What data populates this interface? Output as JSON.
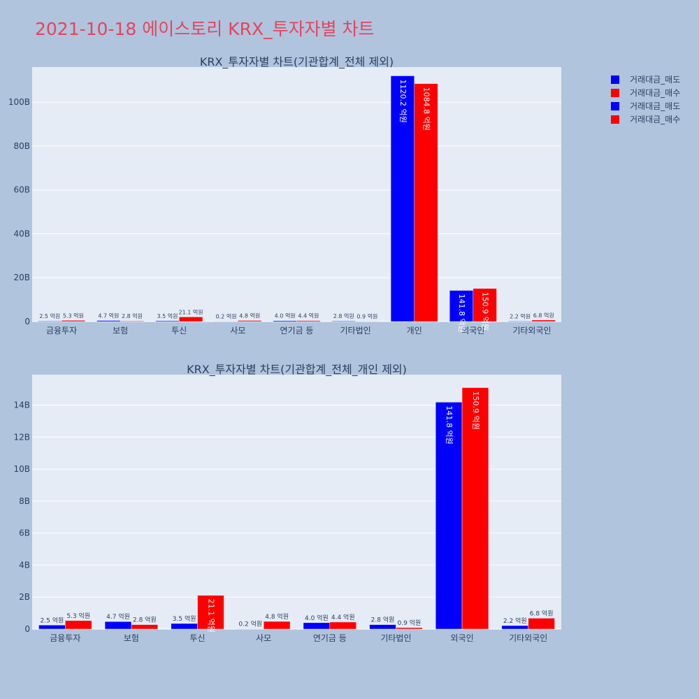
{
  "title": "2021-10-18 에이스토리 KRX_투자자별 차트",
  "legend": [
    {
      "label": "거래대금_매도",
      "color": "#0000ff"
    },
    {
      "label": "거래대금_매수",
      "color": "#ff0000"
    },
    {
      "label": "거래대금_매도",
      "color": "#0000ff"
    },
    {
      "label": "거래대금_매수",
      "color": "#ff0000"
    }
  ],
  "chart_data": [
    {
      "type": "bar",
      "title": "KRX_투자자별 차트(기관합계_전체 제외)",
      "categories": [
        "금융투자",
        "보험",
        "투신",
        "사모",
        "연기금 등",
        "기타법인",
        "개인",
        "외국인",
        "기타외국인"
      ],
      "y_ticks": [
        0,
        20,
        40,
        60,
        80,
        100
      ],
      "y_tick_labels": [
        "0",
        "20B",
        "40B",
        "60B",
        "80B",
        "100B"
      ],
      "ylim": [
        0,
        116
      ],
      "unit": "B",
      "series": [
        {
          "name": "거래대금_매도",
          "color": "#0000ff",
          "values": [
            0.25,
            0.47,
            0.35,
            0.02,
            0.4,
            0.28,
            112.02,
            14.18,
            0.22
          ],
          "labels": [
            "2.5 억원",
            "4.7 억원",
            "3.5 억원",
            "0.2 억원",
            "4.0 억원",
            "2.8 억원",
            "1120.2 억원",
            "141.8 억원",
            "2.2 억원"
          ]
        },
        {
          "name": "거래대금_매수",
          "color": "#ff0000",
          "values": [
            0.53,
            0.28,
            2.11,
            0.48,
            0.44,
            0.09,
            108.48,
            15.09,
            0.68
          ],
          "labels": [
            "5.3 억원",
            "2.8 억원",
            "21.1 억원",
            "4.8 억원",
            "4.4 억원",
            "0.9 억원",
            "1084.8 억원",
            "150.9 억원",
            "6.8 억원"
          ]
        }
      ]
    },
    {
      "type": "bar",
      "title": "KRX_투자자별 차트(기관합계_전체_개인 제외)",
      "categories": [
        "금융투자",
        "보험",
        "투신",
        "사모",
        "연기금 등",
        "기타법인",
        "외국인",
        "기타외국인"
      ],
      "y_ticks": [
        0,
        2,
        4,
        6,
        8,
        10,
        12,
        14
      ],
      "y_tick_labels": [
        "0",
        "2B",
        "4B",
        "6B",
        "8B",
        "10B",
        "12B",
        "14B"
      ],
      "ylim": [
        0,
        15.9
      ],
      "unit": "B",
      "series": [
        {
          "name": "거래대금_매도",
          "color": "#0000ff",
          "values": [
            0.25,
            0.47,
            0.35,
            0.02,
            0.4,
            0.28,
            14.18,
            0.22
          ],
          "labels": [
            "2.5 억원",
            "4.7 억원",
            "3.5 억원",
            "0.2 억원",
            "4.0 억원",
            "2.8 억원",
            "141.8 억원",
            "2.2 억원"
          ]
        },
        {
          "name": "거래대금_매수",
          "color": "#ff0000",
          "values": [
            0.53,
            0.28,
            2.11,
            0.48,
            0.44,
            0.09,
            15.09,
            0.68
          ],
          "labels": [
            "5.3 억원",
            "2.8 억원",
            "21.1 억원",
            "4.8 억원",
            "4.4 억원",
            "0.9 억원",
            "150.9 억원",
            "6.8 억원"
          ]
        }
      ]
    }
  ]
}
